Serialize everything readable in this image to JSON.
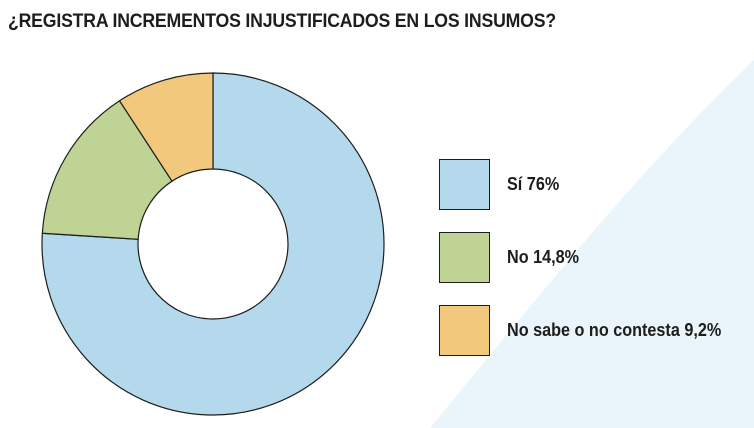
{
  "chart_data": {
    "type": "pie",
    "title": "¿REGISTRA INCREMENTOS INJUSTIFICADOS EN LOS INSUMOS?",
    "donut": true,
    "categories": [
      "Sí",
      "No",
      "No sabe o no contesta"
    ],
    "values": [
      76,
      14.8,
      9.2
    ],
    "legend_labels": [
      "Sí 76%",
      "No 14,8%",
      "No sabe o no contesta 9,2%"
    ],
    "colors": [
      "#b5d9ec",
      "#bed394",
      "#f1c87c"
    ],
    "legend_position": "right"
  },
  "background": {
    "swoosh_color": "#eaf5fb"
  }
}
